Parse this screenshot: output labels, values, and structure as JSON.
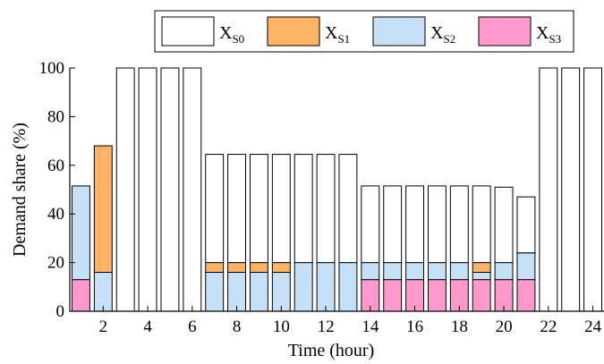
{
  "chart_data": {
    "type": "bar",
    "stacked": true,
    "xlabel": "Time (hour)",
    "ylabel": "Demand share (%)",
    "xlim": [
      0.5,
      24.5
    ],
    "ylim": [
      0,
      100
    ],
    "xticks": [
      2,
      4,
      6,
      8,
      10,
      12,
      14,
      16,
      18,
      20,
      22,
      24
    ],
    "yticks": [
      0,
      20,
      40,
      60,
      80,
      100
    ],
    "x": [
      1,
      2,
      3,
      4,
      5,
      6,
      7,
      8,
      9,
      10,
      11,
      12,
      13,
      14,
      15,
      16,
      17,
      18,
      19,
      20,
      21,
      22,
      23,
      24
    ],
    "legend_position": "top",
    "series": [
      {
        "name": "X_S3",
        "label_main": "X",
        "label_sub": "S3",
        "color": "#ff99cc",
        "values": [
          13,
          0,
          0,
          0,
          0,
          0,
          0,
          0,
          0,
          0,
          0,
          0,
          0,
          13,
          13,
          13,
          13,
          13,
          13,
          13,
          13,
          0,
          0,
          0
        ]
      },
      {
        "name": "X_S2",
        "label_main": "X",
        "label_sub": "S2",
        "color": "#c5e0f7",
        "values": [
          38.5,
          16,
          0,
          0,
          0,
          0,
          16,
          16,
          16,
          16,
          20,
          20,
          20,
          7,
          7,
          7,
          7,
          7,
          3,
          7,
          11,
          0,
          0,
          0
        ]
      },
      {
        "name": "X_S1",
        "label_main": "X",
        "label_sub": "S1",
        "color": "#ffb366",
        "values": [
          0,
          52,
          0,
          0,
          0,
          0,
          4,
          4,
          4,
          4,
          0,
          0,
          0,
          0,
          0,
          0,
          0,
          0,
          4,
          0,
          0,
          0,
          0,
          0
        ]
      },
      {
        "name": "X_S0",
        "label_main": "X",
        "label_sub": "S0",
        "color": "#ffffff",
        "values": [
          0,
          0,
          100,
          100,
          100,
          100,
          44.5,
          44.5,
          44.5,
          44.5,
          44.5,
          44.5,
          44.5,
          31.5,
          31.5,
          31.5,
          31.5,
          31.5,
          31.5,
          31,
          23,
          100,
          100,
          100
        ]
      }
    ],
    "legend_order": [
      "X_S0",
      "X_S1",
      "X_S2",
      "X_S3"
    ]
  }
}
